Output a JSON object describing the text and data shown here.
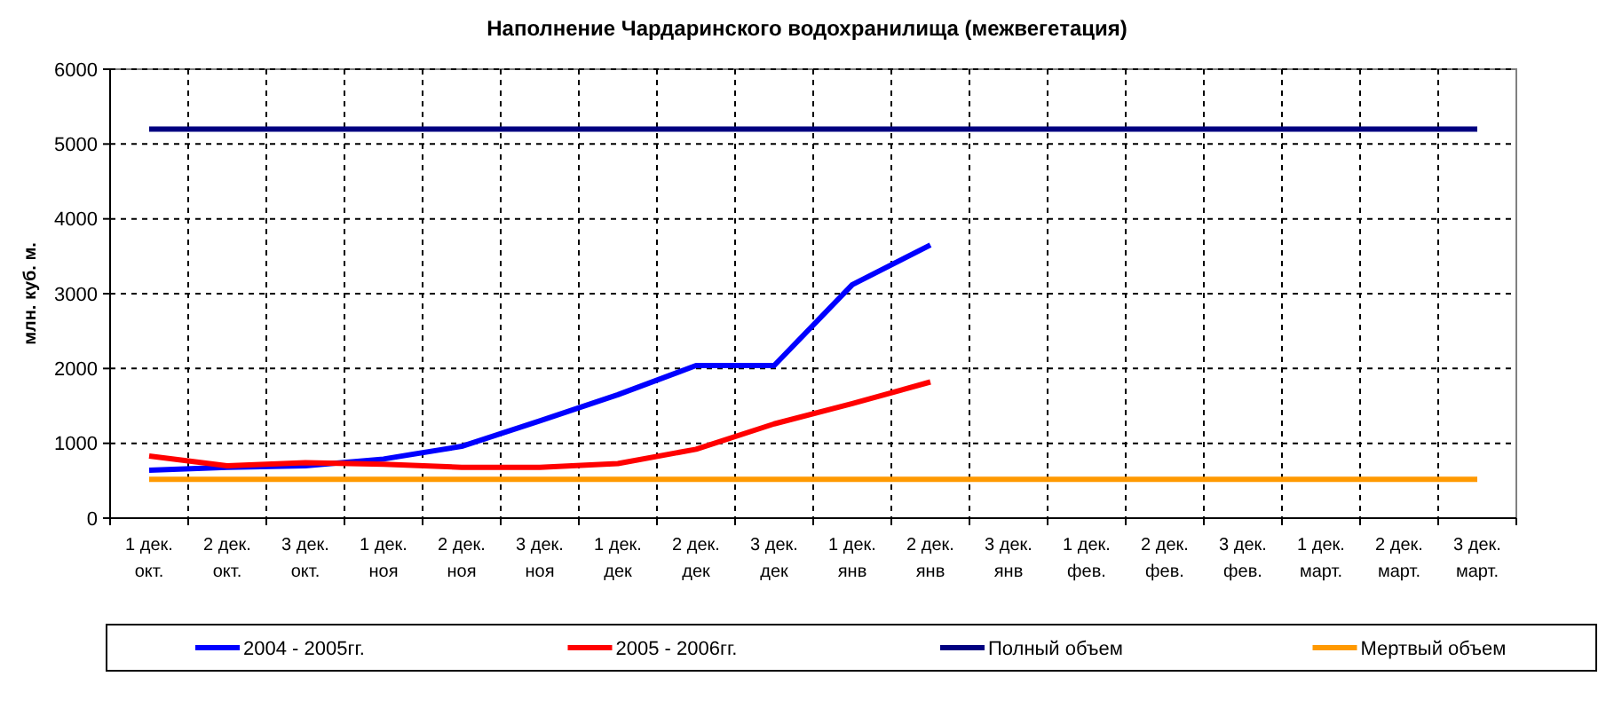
{
  "chart_data": {
    "type": "line",
    "title": "Наполнение Чардаринского водохранилища (межвегетация)",
    "ylabel": "млн. куб. м.",
    "categories": [
      "1 дек.\nокт.",
      "2 дек.\nокт.",
      "3 дек.\nокт.",
      "1 дек.\nноя",
      "2 дек.\nноя",
      "3 дек.\nноя",
      "1 дек.\nдек",
      "2 дек.\nдек",
      "3 дек.\nдек",
      "1 дек.\nянв",
      "2 дек.\nянв",
      "3 дек.\nянв",
      "1 дек.\nфев.",
      "2 дек.\nфев.",
      "3 дек.\nфев.",
      "1 дек.\nмарт.",
      "2 дек.\nмарт.",
      "3 дек.\nмарт."
    ],
    "series": [
      {
        "name": "2004 - 2005гг.",
        "color": "#0000ff",
        "values": [
          640,
          680,
          700,
          790,
          960,
          1300,
          1650,
          2040,
          2040,
          3120,
          3650,
          null,
          null,
          null,
          null,
          null,
          null,
          null
        ]
      },
      {
        "name": "2005 - 2006гг.",
        "color": "#ff0000",
        "values": [
          830,
          700,
          740,
          720,
          680,
          680,
          730,
          920,
          1260,
          1530,
          1820,
          null,
          null,
          null,
          null,
          null,
          null,
          null
        ]
      },
      {
        "name": "Полный объем",
        "color": "#000080",
        "values": [
          5200,
          5200,
          5200,
          5200,
          5200,
          5200,
          5200,
          5200,
          5200,
          5200,
          5200,
          5200,
          5200,
          5200,
          5200,
          5200,
          5200,
          5200
        ]
      },
      {
        "name": "Мертвый объем",
        "color": "#ff9900",
        "values": [
          520,
          520,
          520,
          520,
          520,
          520,
          520,
          520,
          520,
          520,
          520,
          520,
          520,
          520,
          520,
          520,
          520,
          520
        ]
      }
    ],
    "ylim": [
      0,
      6000
    ],
    "yticks": [
      0,
      1000,
      2000,
      3000,
      4000,
      5000,
      6000
    ],
    "grid": true,
    "legend": "bottom",
    "marker": "none",
    "line_style": "solid"
  }
}
